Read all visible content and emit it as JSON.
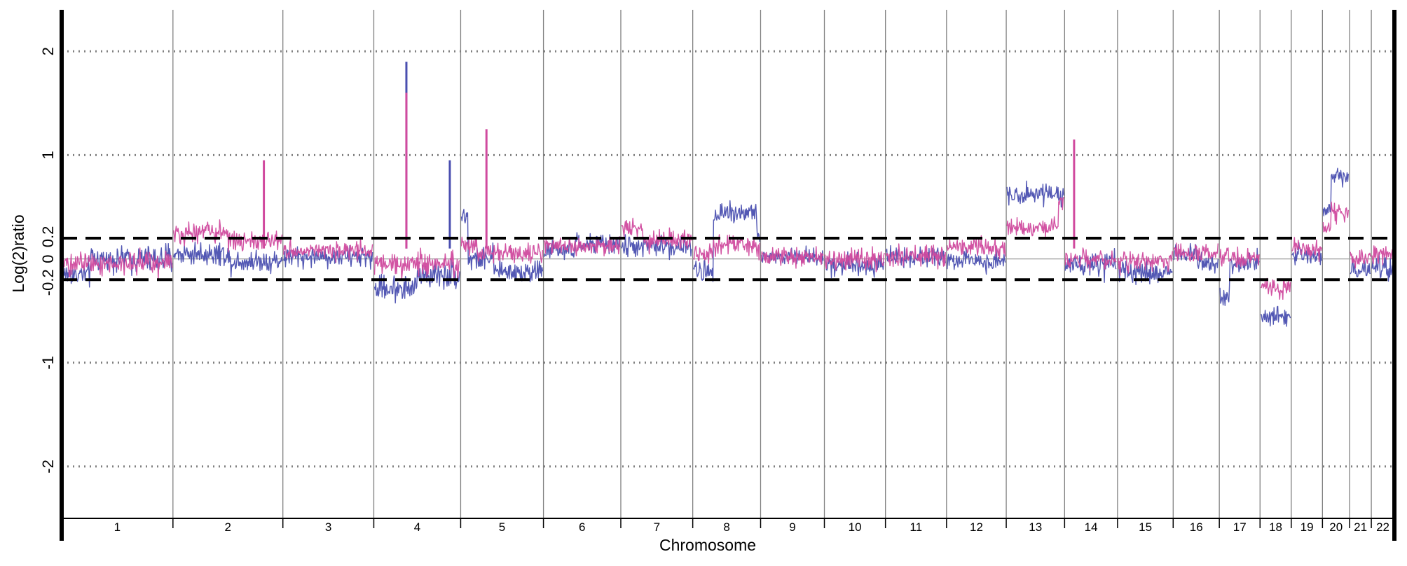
{
  "chart_data": {
    "type": "line",
    "xlabel": "Chromosome",
    "ylabel": "Log(2)ratio",
    "ylim": [
      -2.5,
      2.4
    ],
    "yticks": [
      2,
      1,
      0.2,
      0,
      -0.2,
      -1,
      -2
    ],
    "dotted_gridlines": [
      2,
      1,
      -1,
      -2
    ],
    "threshold_lines": [
      0.2,
      -0.2
    ],
    "baseline": 0,
    "categories": [
      "1",
      "2",
      "3",
      "4",
      "5",
      "6",
      "7",
      "8",
      "9",
      "10",
      "11",
      "12",
      "13",
      "14",
      "15",
      "16",
      "17",
      "18",
      "19",
      "20",
      "21",
      "22"
    ],
    "chromosome_boundaries": [
      0,
      8.2,
      16.3,
      23.0,
      29.4,
      35.5,
      41.2,
      46.5,
      51.5,
      56.2,
      60.7,
      65.2,
      69.6,
      73.9,
      77.8,
      81.9,
      85.3,
      88.3,
      90.6,
      92.9,
      94.9,
      96.5,
      98.2
    ],
    "colors": {
      "series1": "#4a4fb0",
      "series2": "#d04a9e",
      "grid": "#808080",
      "axis": "#000000"
    },
    "series": [
      {
        "color": "#4a4fb0",
        "levels": [
          {
            "chr": "1",
            "segments": [
              [
                0,
                0.25,
                -0.15
              ],
              [
                0.25,
                1,
                0.0
              ]
            ],
            "noise": 0.09
          },
          {
            "chr": "2",
            "segments": [
              [
                0,
                0.5,
                0.05
              ],
              [
                0.5,
                1,
                -0.02
              ]
            ],
            "noise": 0.08
          },
          {
            "chr": "3",
            "segments": [
              [
                0,
                1,
                0.02
              ]
            ],
            "noise": 0.07
          },
          {
            "chr": "4",
            "segments": [
              [
                0,
                0.5,
                -0.28
              ],
              [
                0.5,
                1,
                -0.15
              ]
            ],
            "noise": 0.09
          },
          {
            "chr": "5",
            "segments": [
              [
                0,
                0.08,
                0.42
              ],
              [
                0.08,
                0.4,
                0.0
              ],
              [
                0.4,
                1,
                -0.12
              ]
            ],
            "noise": 0.08
          },
          {
            "chr": "6",
            "segments": [
              [
                0,
                0.4,
                0.08
              ],
              [
                0.4,
                1,
                0.14
              ]
            ],
            "noise": 0.07
          },
          {
            "chr": "7",
            "segments": [
              [
                0,
                1,
                0.12
              ]
            ],
            "noise": 0.07
          },
          {
            "chr": "8",
            "segments": [
              [
                0,
                0.3,
                -0.12
              ],
              [
                0.3,
                0.95,
                0.45
              ],
              [
                0.95,
                1,
                0.2
              ]
            ],
            "noise": 0.08
          },
          {
            "chr": "9",
            "segments": [
              [
                0,
                1,
                0.02
              ]
            ],
            "noise": 0.06
          },
          {
            "chr": "10",
            "segments": [
              [
                0,
                1,
                -0.05
              ]
            ],
            "noise": 0.08
          },
          {
            "chr": "11",
            "segments": [
              [
                0,
                1,
                0.02
              ]
            ],
            "noise": 0.07
          },
          {
            "chr": "12",
            "segments": [
              [
                0,
                1,
                -0.02
              ]
            ],
            "noise": 0.07
          },
          {
            "chr": "13",
            "segments": [
              [
                0,
                1,
                0.63
              ]
            ],
            "noise": 0.07
          },
          {
            "chr": "14",
            "segments": [
              [
                0,
                1,
                -0.06
              ]
            ],
            "noise": 0.08
          },
          {
            "chr": "15",
            "segments": [
              [
                0,
                1,
                -0.13
              ]
            ],
            "noise": 0.08
          },
          {
            "chr": "16",
            "segments": [
              [
                0,
                0.5,
                0.05
              ],
              [
                0.5,
                1,
                -0.02
              ]
            ],
            "noise": 0.08
          },
          {
            "chr": "17",
            "segments": [
              [
                0,
                0.25,
                -0.35
              ],
              [
                0.25,
                1,
                -0.05
              ]
            ],
            "noise": 0.08
          },
          {
            "chr": "18",
            "segments": [
              [
                0,
                1,
                -0.55
              ]
            ],
            "noise": 0.07
          },
          {
            "chr": "19",
            "segments": [
              [
                0,
                1,
                0.05
              ]
            ],
            "noise": 0.07
          },
          {
            "chr": "20",
            "segments": [
              [
                0,
                0.3,
                0.45
              ],
              [
                0.3,
                1,
                0.8
              ]
            ],
            "noise": 0.06
          },
          {
            "chr": "21",
            "segments": [
              [
                0,
                1,
                -0.1
              ]
            ],
            "noise": 0.07
          },
          {
            "chr": "22",
            "segments": [
              [
                0,
                1,
                -0.1
              ]
            ],
            "noise": 0.08
          }
        ],
        "spikes": [
          {
            "x": 25.4,
            "value": 1.9
          },
          {
            "x": 28.6,
            "value": 0.95
          }
        ]
      },
      {
        "color": "#d04a9e",
        "levels": [
          {
            "chr": "1",
            "segments": [
              [
                0,
                1,
                -0.05
              ]
            ],
            "noise": 0.08
          },
          {
            "chr": "2",
            "segments": [
              [
                0,
                0.5,
                0.25
              ],
              [
                0.5,
                1,
                0.18
              ]
            ],
            "noise": 0.07
          },
          {
            "chr": "3",
            "segments": [
              [
                0,
                1,
                0.08
              ]
            ],
            "noise": 0.06
          },
          {
            "chr": "4",
            "segments": [
              [
                0,
                1,
                -0.05
              ]
            ],
            "noise": 0.08
          },
          {
            "chr": "5",
            "segments": [
              [
                0,
                0.2,
                0.15
              ],
              [
                0.2,
                1,
                0.05
              ]
            ],
            "noise": 0.07
          },
          {
            "chr": "6",
            "segments": [
              [
                0,
                1,
                0.12
              ]
            ],
            "noise": 0.06
          },
          {
            "chr": "7",
            "segments": [
              [
                0,
                0.3,
                0.3
              ],
              [
                0.3,
                1,
                0.18
              ]
            ],
            "noise": 0.07
          },
          {
            "chr": "8",
            "segments": [
              [
                0,
                0.3,
                0.05
              ],
              [
                0.3,
                1,
                0.13
              ]
            ],
            "noise": 0.07
          },
          {
            "chr": "9",
            "segments": [
              [
                0,
                1,
                0.02
              ]
            ],
            "noise": 0.06
          },
          {
            "chr": "10",
            "segments": [
              [
                0,
                1,
                0.0
              ]
            ],
            "noise": 0.07
          },
          {
            "chr": "11",
            "segments": [
              [
                0,
                1,
                0.03
              ]
            ],
            "noise": 0.07
          },
          {
            "chr": "12",
            "segments": [
              [
                0,
                1,
                0.12
              ]
            ],
            "noise": 0.07
          },
          {
            "chr": "13",
            "segments": [
              [
                0,
                0.9,
                0.3
              ],
              [
                0.9,
                1,
                0.55
              ]
            ],
            "noise": 0.06
          },
          {
            "chr": "14",
            "segments": [
              [
                0,
                1,
                -0.02
              ]
            ],
            "noise": 0.07
          },
          {
            "chr": "15",
            "segments": [
              [
                0,
                1,
                -0.02
              ]
            ],
            "noise": 0.07
          },
          {
            "chr": "16",
            "segments": [
              [
                0,
                1,
                0.05
              ]
            ],
            "noise": 0.07
          },
          {
            "chr": "17",
            "segments": [
              [
                0,
                1,
                0.0
              ]
            ],
            "noise": 0.07
          },
          {
            "chr": "18",
            "segments": [
              [
                0,
                1,
                -0.28
              ]
            ],
            "noise": 0.07
          },
          {
            "chr": "19",
            "segments": [
              [
                0,
                1,
                0.1
              ]
            ],
            "noise": 0.06
          },
          {
            "chr": "20",
            "segments": [
              [
                0,
                0.3,
                0.3
              ],
              [
                0.3,
                1,
                0.45
              ]
            ],
            "noise": 0.06
          },
          {
            "chr": "21",
            "segments": [
              [
                0,
                1,
                0.0
              ]
            ],
            "noise": 0.06
          },
          {
            "chr": "22",
            "segments": [
              [
                0,
                1,
                0.05
              ]
            ],
            "noise": 0.07
          }
        ],
        "spikes": [
          {
            "x": 14.9,
            "value": 0.95
          },
          {
            "x": 25.4,
            "value": 1.6
          },
          {
            "x": 31.3,
            "value": 1.25
          },
          {
            "x": 74.6,
            "value": 1.15
          }
        ]
      }
    ]
  }
}
